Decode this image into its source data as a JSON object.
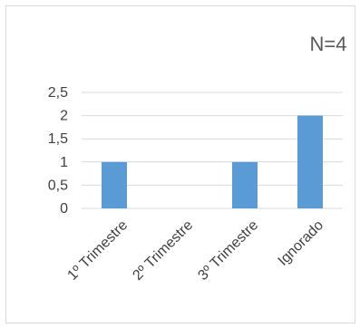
{
  "chart_data": {
    "type": "bar",
    "title": "N=4",
    "categories": [
      "1º Trimestre",
      "2º Trimestre",
      "3º Trimestre",
      "Ignorado"
    ],
    "values": [
      1,
      0,
      1,
      2
    ],
    "ylim": [
      0,
      2.5
    ],
    "yticks": [
      "0",
      "0,5",
      "1",
      "1,5",
      "2",
      "2,5"
    ],
    "ytick_values": [
      0,
      0.5,
      1,
      1.5,
      2,
      2.5
    ],
    "grid": true,
    "legend": "none",
    "bar_color": "#5b9bd5",
    "gridline_color": "#d9d9d9"
  }
}
